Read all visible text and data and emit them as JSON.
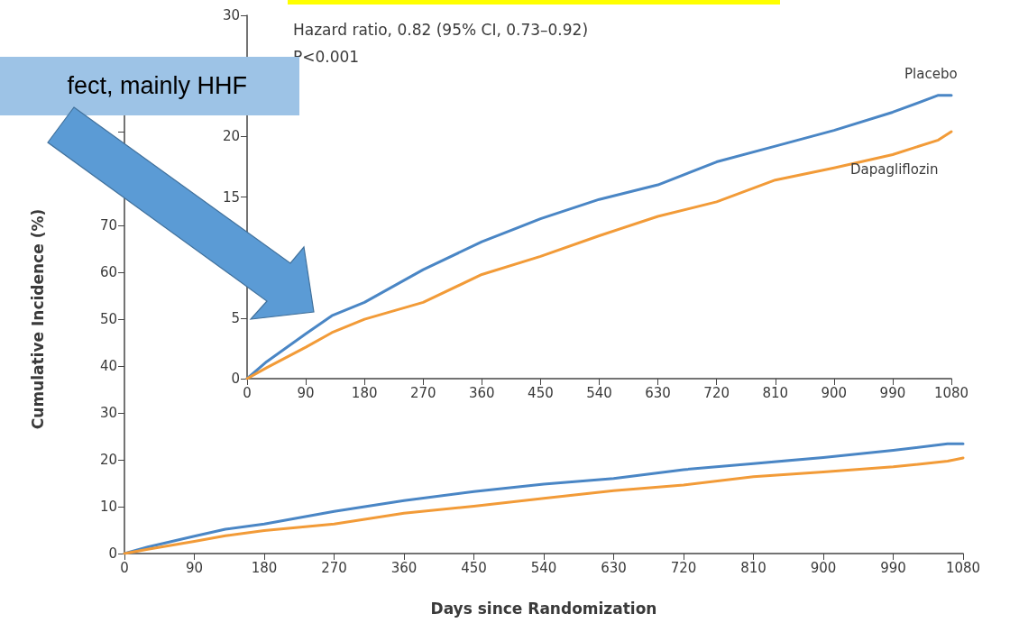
{
  "chart_data": [
    {
      "type": "line",
      "xlabel": "Days since Randomization",
      "ylabel": "Cumulative Incidence (%)",
      "annotations": [
        "fect, mainly HHF"
      ],
      "x": [
        0,
        30,
        90,
        130,
        180,
        270,
        360,
        450,
        540,
        630,
        720,
        810,
        900,
        990,
        1060,
        1080
      ],
      "series": [
        {
          "color": "#4a86c5",
          "values": [
            0,
            1.4,
            3.7,
            5.2,
            6.3,
            9.0,
            11.3,
            13.2,
            14.8,
            16.0,
            17.9,
            19.2,
            20.5,
            22.0,
            23.4,
            23.4
          ]
        },
        {
          "color": "#f29b38",
          "values": [
            0,
            0.9,
            2.6,
            3.8,
            4.9,
            6.3,
            8.6,
            10.1,
            11.8,
            13.4,
            14.6,
            16.4,
            17.4,
            18.5,
            19.7,
            20.4
          ]
        }
      ],
      "xlim": [
        0,
        1080
      ],
      "xticks": [
        0,
        90,
        180,
        270,
        360,
        450,
        540,
        630,
        720,
        810,
        900,
        990,
        1080
      ],
      "ylim": [
        0,
        100
      ],
      "yticks": [
        0,
        10,
        20,
        30,
        40,
        50,
        60,
        70,
        {
          "value": 80,
          "label": null
        },
        {
          "value": 90,
          "label": null
        }
      ]
    },
    {
      "type": "line",
      "annotations": [
        "Hazard ratio, 0.82 (95% CI, 0.73–0.92)",
        "P<0.001"
      ],
      "x": [
        0,
        30,
        90,
        130,
        180,
        270,
        360,
        450,
        540,
        630,
        720,
        810,
        900,
        990,
        1060,
        1080
      ],
      "series": [
        {
          "name": "Placebo",
          "color": "#4a86c5",
          "values": [
            0,
            1.4,
            3.7,
            5.2,
            6.3,
            9.0,
            11.3,
            13.2,
            14.8,
            16.0,
            17.9,
            19.2,
            20.5,
            22.0,
            23.4,
            23.4
          ]
        },
        {
          "name": "Dapagliflozin",
          "color": "#f29b38",
          "values": [
            0,
            0.9,
            2.6,
            3.8,
            4.9,
            6.3,
            8.6,
            10.1,
            11.8,
            13.4,
            14.6,
            16.4,
            17.4,
            18.5,
            19.7,
            20.4
          ]
        }
      ],
      "xlim": [
        0,
        1080
      ],
      "xticks": [
        0,
        90,
        180,
        270,
        360,
        450,
        540,
        630,
        720,
        810,
        900,
        990,
        1080
      ],
      "ylim": [
        0,
        30
      ],
      "yticks": [
        0,
        5,
        {
          "value": 10,
          "label": null
        },
        15,
        20,
        {
          "value": 25,
          "label": null
        },
        30
      ]
    }
  ]
}
